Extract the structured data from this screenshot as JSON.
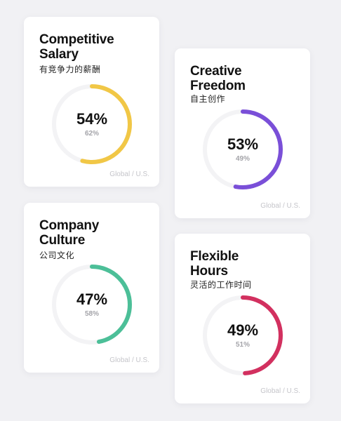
{
  "cards": [
    {
      "title_lines": [
        "Competitive",
        "Salary"
      ],
      "subtitle": "有竞争力的薪酬",
      "primary_percent": 54,
      "primary_label": "54%",
      "secondary_label": "62%",
      "region": "Global / U.S.",
      "color": "#f1c746"
    },
    {
      "title_lines": [
        "Creative",
        "Freedom"
      ],
      "subtitle": "自主创作",
      "primary_percent": 53,
      "primary_label": "53%",
      "secondary_label": "49%",
      "region": "Global / U.S.",
      "color": "#7a4fd8"
    },
    {
      "title_lines": [
        "Company",
        "Culture"
      ],
      "subtitle": "公司文化",
      "primary_percent": 47,
      "primary_label": "47%",
      "secondary_label": "58%",
      "region": "Global / U.S.",
      "color": "#4cbf98"
    },
    {
      "title_lines": [
        "Flexible",
        "Hours"
      ],
      "subtitle": "灵活的工作时间",
      "primary_percent": 49,
      "primary_label": "49%",
      "secondary_label": "51%",
      "region": "Global / U.S.",
      "color": "#d2305f"
    }
  ]
}
